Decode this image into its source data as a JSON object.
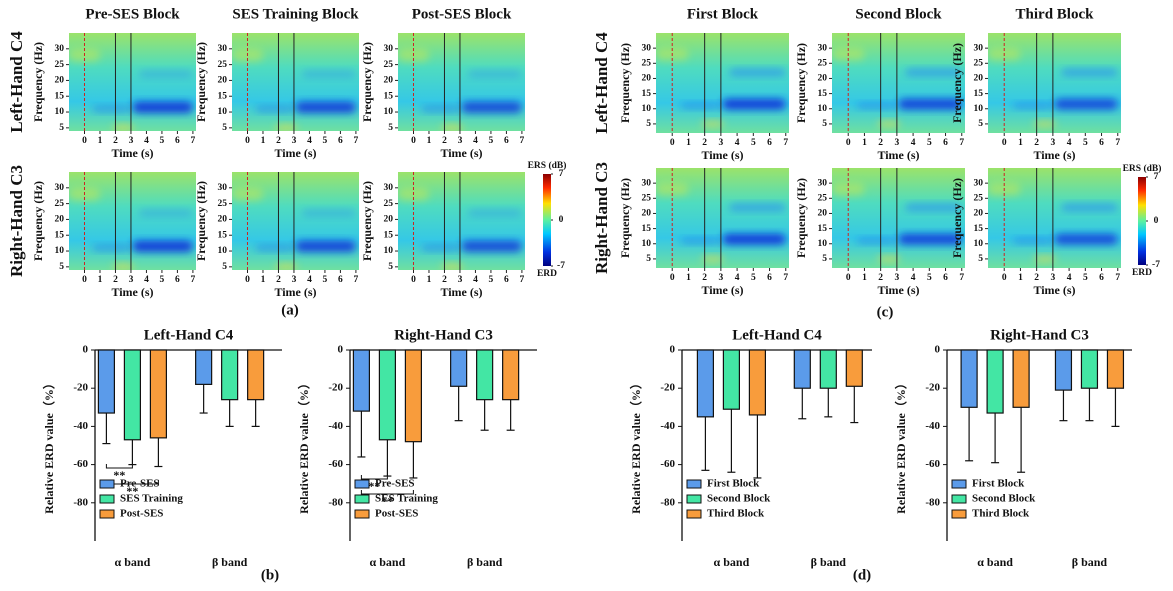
{
  "chart_data": [
    {
      "type": "spectrogram",
      "panel_label": "(a)",
      "columns": [
        "Pre-SES Block",
        "SES Training Block",
        "Post-SES Block"
      ],
      "rows": [
        "Left-Hand C4",
        "Right-Hand C3"
      ],
      "xlabel": "Time (s)",
      "ylabel": "Frequency (Hz)",
      "xlim": [
        -1,
        7.2
      ],
      "xticks": [
        0,
        1,
        2,
        3,
        4,
        5,
        6,
        7
      ],
      "ylim": [
        4,
        35
      ],
      "yticks": [
        5,
        10,
        15,
        20,
        25,
        30
      ],
      "markers": [
        0,
        2,
        3
      ],
      "colorbar": {
        "title": "ERS (dB)",
        "low_label": "ERD",
        "range": [
          -7,
          7
        ],
        "ticks": [
          7,
          0,
          -7
        ]
      }
    },
    {
      "type": "spectrogram",
      "panel_label": "(c)",
      "columns": [
        "First Block",
        "Second Block",
        "Third Block"
      ],
      "rows": [
        "Left-Hand C4",
        "Right-Hand C3"
      ],
      "xlabel": "Time (s)",
      "ylabel": "Frequency (Hz)",
      "xlim": [
        -1,
        7.2
      ],
      "xticks": [
        0,
        1,
        2,
        3,
        4,
        5,
        6,
        7
      ],
      "ylim": [
        2,
        35
      ],
      "yticks": [
        5,
        10,
        15,
        20,
        25,
        30
      ],
      "markers": [
        0,
        2,
        3
      ],
      "colorbar": {
        "title": "ERS (dB)",
        "low_label": "ERD",
        "range": [
          -7,
          7
        ],
        "ticks": [
          7,
          0,
          -7
        ]
      }
    },
    {
      "type": "bar",
      "title": "Left-Hand C4",
      "ylabel": "Relative ERD value（%）",
      "categories": [
        "α band",
        "β band"
      ],
      "ylim": [
        -100,
        0
      ],
      "yticks": [
        0,
        -20,
        -40,
        -60,
        -80
      ],
      "series": [
        {
          "name": "Pre-SES",
          "color": "#5b9bea",
          "values": [
            -33,
            -18
          ],
          "errors": [
            16,
            15
          ]
        },
        {
          "name": "SES Training",
          "color": "#43e6a4",
          "values": [
            -47,
            -26
          ],
          "errors": [
            13,
            14
          ]
        },
        {
          "name": "Post-SES",
          "color": "#f89c3c",
          "values": [
            -46,
            -26
          ],
          "errors": [
            15,
            14
          ]
        }
      ],
      "annotations": [
        "**",
        "**"
      ]
    },
    {
      "type": "bar",
      "title": "Right-Hand C3",
      "ylabel": "Relative ERD value（%）",
      "panel_label": "(b)",
      "categories": [
        "α band",
        "β band"
      ],
      "ylim": [
        -100,
        0
      ],
      "yticks": [
        0,
        -20,
        -40,
        -60,
        -80
      ],
      "series": [
        {
          "name": "Pre-SES",
          "color": "#5b9bea",
          "values": [
            -32,
            -19
          ],
          "errors": [
            24,
            18
          ]
        },
        {
          "name": "SES Training",
          "color": "#43e6a4",
          "values": [
            -47,
            -26
          ],
          "errors": [
            19,
            16
          ]
        },
        {
          "name": "Post-SES",
          "color": "#f89c3c",
          "values": [
            -48,
            -26
          ],
          "errors": [
            19,
            16
          ]
        }
      ],
      "annotations": [
        "**",
        "**"
      ]
    },
    {
      "type": "bar",
      "title": "Left-Hand C4",
      "ylabel": "Relative ERD value（%）",
      "categories": [
        "α band",
        "β band"
      ],
      "ylim": [
        -100,
        0
      ],
      "yticks": [
        0,
        -20,
        -40,
        -60,
        -80
      ],
      "series": [
        {
          "name": "First Block",
          "color": "#5b9bea",
          "values": [
            -35,
            -20
          ],
          "errors": [
            28,
            16
          ]
        },
        {
          "name": "Second Block",
          "color": "#43e6a4",
          "values": [
            -31,
            -20
          ],
          "errors": [
            33,
            15
          ]
        },
        {
          "name": "Third Block",
          "color": "#f89c3c",
          "values": [
            -34,
            -19
          ],
          "errors": [
            33,
            19
          ]
        }
      ]
    },
    {
      "type": "bar",
      "title": "Right-Hand C3",
      "ylabel": "Relative ERD value（%）",
      "panel_label": "(d)",
      "categories": [
        "α band",
        "β band"
      ],
      "ylim": [
        -100,
        0
      ],
      "yticks": [
        0,
        -20,
        -40,
        -60,
        -80
      ],
      "series": [
        {
          "name": "First Block",
          "color": "#5b9bea",
          "values": [
            -30,
            -21
          ],
          "errors": [
            28,
            16
          ]
        },
        {
          "name": "Second Block",
          "color": "#43e6a4",
          "values": [
            -33,
            -20
          ],
          "errors": [
            26,
            17
          ]
        },
        {
          "name": "Third Block",
          "color": "#f89c3c",
          "values": [
            -30,
            -20
          ],
          "errors": [
            34,
            20
          ]
        }
      ]
    }
  ]
}
